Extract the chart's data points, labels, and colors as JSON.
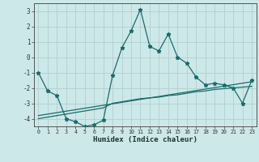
{
  "xlabel": "Humidex (Indice chaleur)",
  "background_color": "#cde8e8",
  "line_color": "#1a6b6b",
  "grid_color": "#b0d0d0",
  "xlim": [
    -0.5,
    23.5
  ],
  "ylim": [
    -4.5,
    3.5
  ],
  "yticks": [
    -4,
    -3,
    -2,
    -1,
    0,
    1,
    2,
    3
  ],
  "xticks": [
    0,
    1,
    2,
    3,
    4,
    5,
    6,
    7,
    8,
    9,
    10,
    11,
    12,
    13,
    14,
    15,
    16,
    17,
    18,
    19,
    20,
    21,
    22,
    23
  ],
  "series1_x": [
    0,
    1,
    2,
    3,
    4,
    5,
    6,
    7,
    8,
    9,
    10,
    11,
    12,
    13,
    14,
    15,
    16,
    17,
    18,
    19,
    20,
    21,
    22,
    23
  ],
  "series1_y": [
    -1.0,
    -2.2,
    -2.5,
    -4.0,
    -4.2,
    -4.5,
    -4.4,
    -4.1,
    -1.2,
    0.6,
    1.7,
    3.1,
    0.7,
    0.4,
    1.5,
    0.0,
    -0.4,
    -1.3,
    -1.8,
    -1.7,
    -1.8,
    -2.0,
    -3.0,
    -1.5
  ],
  "series2_x": [
    0,
    23
  ],
  "series2_y": [
    -3.8,
    -1.6
  ],
  "series3_x": [
    0,
    7,
    8,
    9,
    10,
    11,
    12,
    13,
    14,
    15,
    16,
    17,
    18,
    19,
    20,
    21,
    22,
    23
  ],
  "series3_y": [
    -4.0,
    -3.3,
    -3.0,
    -2.9,
    -2.8,
    -2.7,
    -2.65,
    -2.6,
    -2.5,
    -2.45,
    -2.35,
    -2.25,
    -2.2,
    -2.1,
    -2.05,
    -2.0,
    -1.95,
    -1.9
  ]
}
